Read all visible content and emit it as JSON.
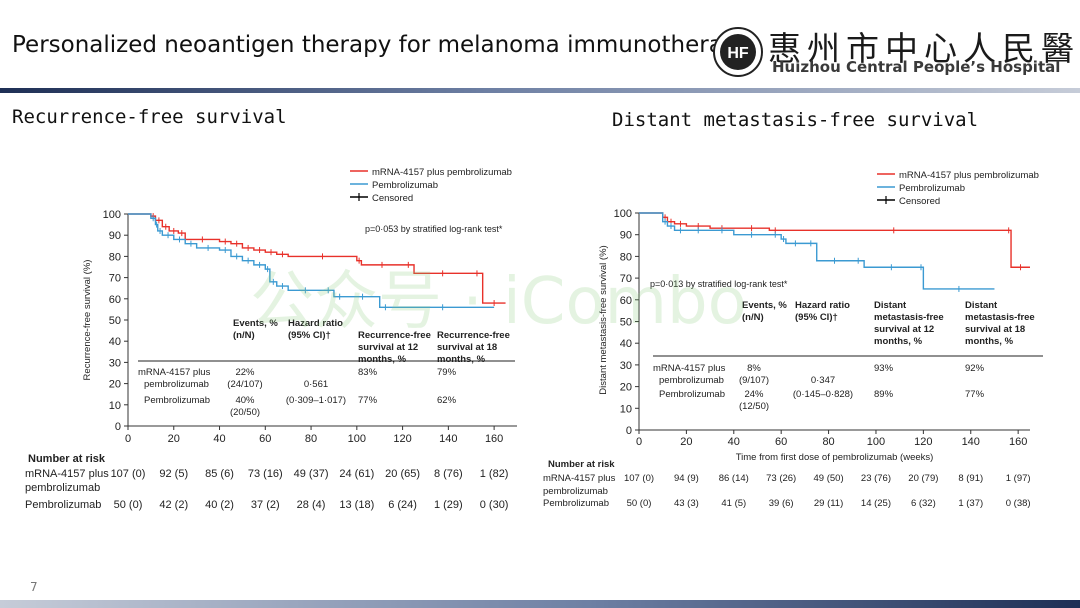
{
  "header": {
    "title": "Personalized neoantigen therapy for melanoma immunotherapy",
    "hospital_cn": "惠州市中心人民醫院",
    "hospital_en": "Huizhou Central People’s Hospital",
    "logo_text": "HF"
  },
  "page_number": "7",
  "watermark": "公众号 · iCombo",
  "chart_data": [
    {
      "type": "line",
      "panel_title": "Recurrence-free survival",
      "ylabel": "Recurrence-free survival (%)",
      "xlabel": "",
      "xlim": [
        0,
        170
      ],
      "ylim": [
        0,
        100
      ],
      "xticks": [
        0,
        20,
        40,
        60,
        80,
        100,
        120,
        140,
        160
      ],
      "yticks": [
        0,
        10,
        20,
        30,
        40,
        50,
        60,
        70,
        80,
        90,
        100
      ],
      "legend": [
        "mRNA-4157 plus pembrolizumab",
        "Pembrolizumab",
        "Censored"
      ],
      "legend_position": "top-right",
      "pvalue": "p=0·053 by stratified log-rank test*",
      "series": [
        {
          "name": "mRNA-4157 plus pembrolizumab",
          "color": "#e8312a",
          "x": [
            0,
            10,
            12,
            15,
            18,
            22,
            25,
            40,
            45,
            50,
            55,
            60,
            65,
            70,
            100,
            102,
            120,
            125,
            150,
            155,
            165
          ],
          "y": [
            100,
            99,
            97,
            94,
            92,
            91,
            88,
            87,
            86,
            84,
            83,
            82,
            81,
            80,
            78,
            76,
            76,
            72,
            72,
            58,
            58
          ]
        },
        {
          "name": "Pembrolizumab",
          "color": "#3b9ad2",
          "x": [
            0,
            10,
            12,
            13,
            15,
            20,
            25,
            30,
            40,
            45,
            50,
            55,
            60,
            62,
            65,
            70,
            85,
            90,
            95,
            110,
            115,
            160
          ],
          "y": [
            100,
            98,
            95,
            92,
            90,
            88,
            86,
            84,
            83,
            80,
            78,
            76,
            74,
            68,
            66,
            64,
            64,
            61,
            61,
            56,
            56,
            56
          ]
        }
      ],
      "table": {
        "headers": [
          "Events, % (n/N)",
          "Hazard ratio (95% CI)†",
          "Recurrence-free survival at 12 months, %",
          "Recurrence-free survival at 18 months, %"
        ],
        "rows": [
          {
            "arm": "mRNA-4157 plus pembrolizumab",
            "events": "22% (24/107)",
            "hr": "0·561",
            "m12": "83%",
            "m18": "79%"
          },
          {
            "arm": "Pembrolizumab",
            "events": "40% (20/50)",
            "hr": "(0·309–1·017)",
            "m12": "77%",
            "m18": "62%"
          }
        ]
      },
      "risk_table": {
        "title": "Number at risk",
        "rows": [
          {
            "label": "mRNA-4157 plus",
            "label2": "pembrolizumab",
            "values": [
              "107 (0)",
              "92 (5)",
              "85 (6)",
              "73 (16)",
              "49 (37)",
              "24 (61)",
              "20 (65)",
              "8 (76)",
              "1 (82)"
            ]
          },
          {
            "label": "Pembrolizumab",
            "label2": "",
            "values": [
              "50 (0)",
              "42 (2)",
              "40 (2)",
              "37 (2)",
              "28 (4)",
              "13 (18)",
              "6 (24)",
              "1 (29)",
              "0 (30)"
            ]
          }
        ]
      }
    },
    {
      "type": "line",
      "panel_title": "Distant metastasis-free survival",
      "ylabel": "Distant metastasis-free survival (%)",
      "xlabel": "Time from first dose of pembrolizumab (weeks)",
      "xlim": [
        0,
        165
      ],
      "ylim": [
        0,
        100
      ],
      "xticks": [
        0,
        20,
        40,
        60,
        80,
        100,
        120,
        140,
        160
      ],
      "yticks": [
        0,
        10,
        20,
        30,
        40,
        50,
        60,
        70,
        80,
        90,
        100
      ],
      "legend": [
        "mRNA-4157 plus pembrolizumab",
        "Pembrolizumab",
        "Censored"
      ],
      "legend_position": "top-right",
      "pvalue": "p=0·013 by stratified log-rank test*",
      "series": [
        {
          "name": "mRNA-4157 plus pembrolizumab",
          "color": "#e8312a",
          "x": [
            0,
            10,
            12,
            15,
            20,
            30,
            40,
            55,
            60,
            155,
            157,
            165
          ],
          "y": [
            100,
            98,
            96,
            95,
            94,
            93,
            93,
            92,
            92,
            92,
            75,
            75
          ]
        },
        {
          "name": "Pembrolizumab",
          "color": "#3b9ad2",
          "x": [
            0,
            10,
            12,
            15,
            20,
            30,
            40,
            55,
            60,
            62,
            70,
            75,
            90,
            95,
            118,
            120,
            150
          ],
          "y": [
            100,
            96,
            94,
            92,
            92,
            92,
            90,
            90,
            88,
            86,
            86,
            78,
            78,
            75,
            75,
            65,
            65
          ]
        }
      ],
      "table": {
        "headers": [
          "Events, % (n/N)",
          "Hazard ratio (95% CI)†",
          "Distant metastasis-free survival at 12 months, %",
          "Distant metastasis-free survival at 18 months, %"
        ],
        "rows": [
          {
            "arm": "mRNA-4157 plus pembrolizumab",
            "events": "8% (9/107)",
            "hr": "0·347",
            "m12": "93%",
            "m18": "92%"
          },
          {
            "arm": "Pembrolizumab",
            "events": "24% (12/50)",
            "hr": "(0·145–0·828)",
            "m12": "89%",
            "m18": "77%"
          }
        ]
      },
      "risk_table": {
        "title": "Number at risk",
        "rows": [
          {
            "label": "mRNA-4157 plus",
            "label2": "pembrolizumab",
            "values": [
              "107 (0)",
              "94 (9)",
              "86 (14)",
              "73 (26)",
              "49 (50)",
              "23 (76)",
              "20 (79)",
              "8 (91)",
              "1 (97)"
            ]
          },
          {
            "label": "Pembrolizumab",
            "label2": "",
            "values": [
              "50 (0)",
              "43 (3)",
              "41 (5)",
              "39 (6)",
              "29 (11)",
              "14 (25)",
              "6 (32)",
              "1 (37)",
              "0 (38)"
            ]
          }
        ]
      }
    }
  ]
}
